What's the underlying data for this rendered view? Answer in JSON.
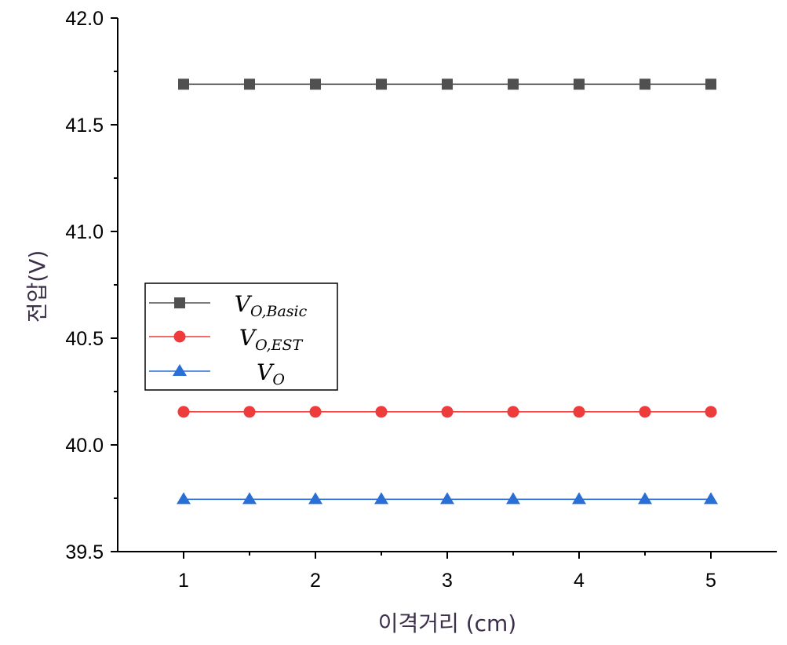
{
  "chart_data": {
    "type": "line",
    "xlabel": "이격거리 (cm)",
    "ylabel": "전압(V)",
    "xlim": [
      0.5,
      5.5
    ],
    "ylim": [
      39.5,
      42.0
    ],
    "x_ticks": [
      "1",
      "2",
      "3",
      "4",
      "5"
    ],
    "y_ticks": [
      "39.5",
      "40.0",
      "40.5",
      "41.0",
      "41.5",
      "42.0"
    ],
    "x": [
      1,
      1.5,
      2,
      2.5,
      3,
      3.5,
      4,
      4.5,
      5
    ],
    "grid": false,
    "legend_position": "left",
    "series": [
      {
        "name": "V_O,Basic",
        "legend_main": "V",
        "legend_sub": "O,Basic",
        "marker": "square",
        "color": "#505050",
        "values": [
          41.69,
          41.69,
          41.69,
          41.69,
          41.69,
          41.69,
          41.69,
          41.69,
          41.69
        ]
      },
      {
        "name": "V_O,EST",
        "legend_main": "V",
        "legend_sub": "O,EST",
        "marker": "circle",
        "color": "#ee3b3b",
        "values": [
          40.155,
          40.155,
          40.155,
          40.155,
          40.155,
          40.155,
          40.155,
          40.155,
          40.155
        ]
      },
      {
        "name": "V_O",
        "legend_main": "V",
        "legend_sub": "O",
        "marker": "triangle",
        "color": "#2a6fd6",
        "values": [
          39.745,
          39.745,
          39.745,
          39.745,
          39.745,
          39.745,
          39.745,
          39.745,
          39.745
        ]
      }
    ]
  }
}
